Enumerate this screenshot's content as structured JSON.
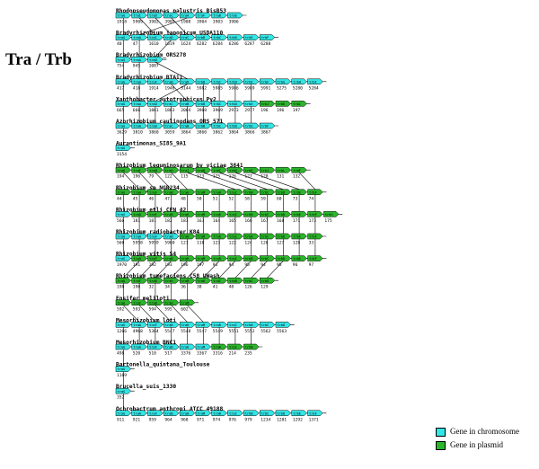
{
  "title": "Tra / Trb",
  "colors": {
    "chromosome": "#33e6e6",
    "plasmid": "#2bb52b",
    "line": "#000000"
  },
  "legend": [
    {
      "key": "chromosome",
      "label": "Gene in chromosome"
    },
    {
      "key": "plasmid",
      "label": "Gene in plasmid"
    }
  ],
  "organisms": [
    {
      "name": "Rhodopseudomonas_palustris_BisB53",
      "genes": [
        {
          "label": "traG",
          "num": "1918",
          "loc": "c"
        },
        {
          "label": "traI",
          "num": "5909",
          "loc": "c"
        },
        {
          "label": "traD",
          "num": "3902",
          "loc": "c"
        },
        {
          "label": "traC",
          "num": "3905",
          "loc": "c"
        },
        {
          "label": "traA",
          "num": "1908",
          "loc": "c"
        },
        {
          "label": "traF",
          "num": "3904",
          "loc": "c"
        },
        {
          "label": "traB",
          "num": "3903",
          "loc": "c"
        },
        {
          "label": "traE",
          "num": "3906",
          "loc": "c"
        }
      ]
    },
    {
      "name": "Bradyrhizobium_japonicum_USDA110",
      "genes": [
        {
          "label": "traG",
          "num": "40",
          "loc": "c"
        },
        {
          "label": "traA",
          "num": "47",
          "loc": "c"
        },
        {
          "label": "traI",
          "num": "1610",
          "loc": "c"
        },
        {
          "label": "traD",
          "num": "1619",
          "loc": "c"
        },
        {
          "label": "traC",
          "num": "1624",
          "loc": "c"
        },
        {
          "label": "trbB",
          "num": "6282",
          "loc": "c"
        },
        {
          "label": "trbC",
          "num": "6284",
          "loc": "c"
        },
        {
          "label": "trbD",
          "num": "6286",
          "loc": "c"
        },
        {
          "label": "trbE",
          "num": "6287",
          "loc": "c"
        },
        {
          "label": "trbF",
          "num": "6288",
          "loc": "c"
        }
      ]
    },
    {
      "name": "Bradyrhizobium_ORS278",
      "genes": [
        {
          "label": "traG",
          "num": "754",
          "loc": "c"
        },
        {
          "label": "traA",
          "num": "945",
          "loc": "c"
        },
        {
          "label": "traD",
          "num": "1087",
          "loc": "c"
        }
      ]
    },
    {
      "name": "Bradyrhizobium_BTAi1",
      "genes": [
        {
          "label": "traG",
          "num": "417",
          "loc": "c"
        },
        {
          "label": "traA",
          "num": "418",
          "loc": "c"
        },
        {
          "label": "traF",
          "num": "1914",
          "loc": "c"
        },
        {
          "label": "traB",
          "num": "1946",
          "loc": "c"
        },
        {
          "label": "traD",
          "num": "3144",
          "loc": "c"
        },
        {
          "label": "trbB",
          "num": "5982",
          "loc": "c"
        },
        {
          "label": "trbC",
          "num": "5985",
          "loc": "c"
        },
        {
          "label": "trbD",
          "num": "5986",
          "loc": "c"
        },
        {
          "label": "trbE",
          "num": "5989",
          "loc": "c"
        },
        {
          "label": "trbF",
          "num": "5991",
          "loc": "c"
        },
        {
          "label": "trbG",
          "num": "5275",
          "loc": "c"
        },
        {
          "label": "trbH",
          "num": "5280",
          "loc": "c"
        },
        {
          "label": "trbI",
          "num": "5284",
          "loc": "c"
        }
      ]
    },
    {
      "name": "Xanthobacter_autotrophicus_Py2",
      "genes": [
        {
          "label": "traG",
          "num": "665",
          "loc": "c"
        },
        {
          "label": "traA",
          "num": "666",
          "loc": "c"
        },
        {
          "label": "traD",
          "num": "1861",
          "loc": "c"
        },
        {
          "label": "traC",
          "num": "1863",
          "loc": "c"
        },
        {
          "label": "traB",
          "num": "2064",
          "loc": "c"
        },
        {
          "label": "trbB",
          "num": "3968",
          "loc": "c"
        },
        {
          "label": "trbC",
          "num": "3969",
          "loc": "c"
        },
        {
          "label": "trbD",
          "num": "2973",
          "loc": "c"
        },
        {
          "label": "trbE",
          "num": "2977",
          "loc": "c"
        },
        {
          "label": "trbJ",
          "num": "196",
          "loc": "p"
        },
        {
          "label": "trbK",
          "num": "196",
          "loc": "p"
        },
        {
          "label": "trbL",
          "num": "197",
          "loc": "p"
        }
      ]
    },
    {
      "name": "Azorhizobium_caulinodans_ORS_571",
      "genes": [
        {
          "label": "traG",
          "num": "3629",
          "loc": "c"
        },
        {
          "label": "traA",
          "num": "3810",
          "loc": "c"
        },
        {
          "label": "traD",
          "num": "3860",
          "loc": "c"
        },
        {
          "label": "traC",
          "num": "3059",
          "loc": "c"
        },
        {
          "label": "traB",
          "num": "3864",
          "loc": "c"
        },
        {
          "label": "trbB",
          "num": "3860",
          "loc": "c"
        },
        {
          "label": "trbC",
          "num": "3862",
          "loc": "c"
        },
        {
          "label": "trbD",
          "num": "3864",
          "loc": "c"
        },
        {
          "label": "trbE",
          "num": "3866",
          "loc": "c"
        },
        {
          "label": "trbF",
          "num": "3867",
          "loc": "c"
        }
      ]
    },
    {
      "name": "Aurantimonas_SI85_9A1",
      "genes": [
        {
          "label": "traG",
          "num": "3154",
          "loc": "c"
        }
      ]
    },
    {
      "name": "Rhizobium_leguminosarum_bv_viciae_3841",
      "genes": [
        {
          "label": "traA",
          "num": "194",
          "loc": "p"
        },
        {
          "label": "traF",
          "num": "196",
          "loc": "p"
        },
        {
          "label": "traB",
          "num": "79",
          "loc": "p"
        },
        {
          "label": "traH",
          "num": "122",
          "loc": "p"
        },
        {
          "label": "traI",
          "num": "115",
          "loc": "p"
        },
        {
          "label": "trbB",
          "num": "123",
          "loc": "p"
        },
        {
          "label": "trbC",
          "num": "125",
          "loc": "p"
        },
        {
          "label": "trbD",
          "num": "126",
          "loc": "p"
        },
        {
          "label": "trbE",
          "num": "127",
          "loc": "p"
        },
        {
          "label": "trbJ",
          "num": "128",
          "loc": "p"
        },
        {
          "label": "trbL",
          "num": "131",
          "loc": "p"
        },
        {
          "label": "trbF",
          "num": "132",
          "loc": "p"
        }
      ]
    },
    {
      "name": "Rhizobium_sp_NGR234",
      "genes": [
        {
          "label": "traG",
          "num": "44",
          "loc": "p"
        },
        {
          "label": "traA",
          "num": "45",
          "loc": "p"
        },
        {
          "label": "traF",
          "num": "46",
          "loc": "p"
        },
        {
          "label": "traB",
          "num": "47",
          "loc": "p"
        },
        {
          "label": "traH",
          "num": "48",
          "loc": "p"
        },
        {
          "label": "traM",
          "num": "50",
          "loc": "p"
        },
        {
          "label": "traR",
          "num": "51",
          "loc": "p"
        },
        {
          "label": "traI",
          "num": "52",
          "loc": "p"
        },
        {
          "label": "trbB",
          "num": "58",
          "loc": "p"
        },
        {
          "label": "trbC",
          "num": "59",
          "loc": "p"
        },
        {
          "label": "trbD",
          "num": "60",
          "loc": "p"
        },
        {
          "label": "trbE",
          "num": "73",
          "loc": "p"
        },
        {
          "label": "trbF",
          "num": "74",
          "loc": "p"
        }
      ]
    },
    {
      "name": "Rhizobium_etli_CFN_42",
      "genes": [
        {
          "label": "traG",
          "num": "566",
          "loc": "c"
        },
        {
          "label": "traA",
          "num": "181",
          "loc": "p"
        },
        {
          "label": "traF",
          "num": "181",
          "loc": "p"
        },
        {
          "label": "traB",
          "num": "182",
          "loc": "p"
        },
        {
          "label": "traH",
          "num": "183",
          "loc": "p"
        },
        {
          "label": "traM",
          "num": "163",
          "loc": "p"
        },
        {
          "label": "traR",
          "num": "164",
          "loc": "p"
        },
        {
          "label": "traI",
          "num": "165",
          "loc": "p"
        },
        {
          "label": "trbB",
          "num": "166",
          "loc": "p"
        },
        {
          "label": "trbC",
          "num": "167",
          "loc": "p"
        },
        {
          "label": "trbD",
          "num": "168",
          "loc": "p"
        },
        {
          "label": "trbE",
          "num": "171",
          "loc": "p"
        },
        {
          "label": "trbF",
          "num": "173",
          "loc": "p"
        },
        {
          "label": "trbG",
          "num": "175",
          "loc": "p"
        }
      ]
    },
    {
      "name": "Rhizobium_radiobacter_K84",
      "genes": [
        {
          "label": "traG",
          "num": "560",
          "loc": "c"
        },
        {
          "label": "traA",
          "num": "5958",
          "loc": "c"
        },
        {
          "label": "traF",
          "num": "5959",
          "loc": "c"
        },
        {
          "label": "traB",
          "num": "5960",
          "loc": "c"
        },
        {
          "label": "traH",
          "num": "121",
          "loc": "p"
        },
        {
          "label": "traM",
          "num": "118",
          "loc": "p"
        },
        {
          "label": "traR",
          "num": "123",
          "loc": "p"
        },
        {
          "label": "traI",
          "num": "122",
          "loc": "p"
        },
        {
          "label": "trbB",
          "num": "124",
          "loc": "p"
        },
        {
          "label": "trbC",
          "num": "126",
          "loc": "p"
        },
        {
          "label": "trbD",
          "num": "127",
          "loc": "p"
        },
        {
          "label": "trbE",
          "num": "128",
          "loc": "p"
        },
        {
          "label": "trbF",
          "num": "33",
          "loc": "p"
        }
      ]
    },
    {
      "name": "Rhizobium_vitis_S4",
      "genes": [
        {
          "label": "traG",
          "num": "1970",
          "loc": "c"
        },
        {
          "label": "traA",
          "num": "191",
          "loc": "p"
        },
        {
          "label": "traF",
          "num": "192",
          "loc": "p"
        },
        {
          "label": "traB",
          "num": "193",
          "loc": "p"
        },
        {
          "label": "traH",
          "num": "196",
          "loc": "p"
        },
        {
          "label": "traM",
          "num": "197",
          "loc": "p"
        },
        {
          "label": "traR",
          "num": "91",
          "loc": "p"
        },
        {
          "label": "traI",
          "num": "94",
          "loc": "p"
        },
        {
          "label": "trbB",
          "num": "95",
          "loc": "p"
        },
        {
          "label": "trbC",
          "num": "94",
          "loc": "p"
        },
        {
          "label": "trbD",
          "num": "95",
          "loc": "p"
        },
        {
          "label": "trbE",
          "num": "96",
          "loc": "p"
        },
        {
          "label": "trbF",
          "num": "97",
          "loc": "p"
        }
      ]
    },
    {
      "name": "Rhizobium_tumefaciens_C58_UWash",
      "genes": [
        {
          "label": "traA",
          "num": "198",
          "loc": "p"
        },
        {
          "label": "traF",
          "num": "190",
          "loc": "p"
        },
        {
          "label": "traB",
          "num": "32",
          "loc": "p"
        },
        {
          "label": "traH",
          "num": "34",
          "loc": "p"
        },
        {
          "label": "traM",
          "num": "36",
          "loc": "p"
        },
        {
          "label": "traR",
          "num": "38",
          "loc": "p"
        },
        {
          "label": "traI",
          "num": "41",
          "loc": "p"
        },
        {
          "label": "trbB",
          "num": "48",
          "loc": "p"
        },
        {
          "label": "trbC",
          "num": "126",
          "loc": "p"
        },
        {
          "label": "trbD",
          "num": "129",
          "loc": "p"
        }
      ]
    },
    {
      "name": "Ensifer_meliloti",
      "genes": [
        {
          "label": "traA",
          "num": "592",
          "loc": "p"
        },
        {
          "label": "traF",
          "num": "593",
          "loc": "p"
        },
        {
          "label": "traB",
          "num": "594",
          "loc": "p"
        },
        {
          "label": "traH",
          "num": "595",
          "loc": "p"
        },
        {
          "label": "traM",
          "num": "602",
          "loc": "p"
        }
      ]
    },
    {
      "name": "Mesorhizobium_loti",
      "genes": [
        {
          "label": "traG",
          "num": "1266",
          "loc": "c"
        },
        {
          "label": "traA",
          "num": "4968",
          "loc": "c"
        },
        {
          "label": "traF",
          "num": "5364",
          "loc": "c"
        },
        {
          "label": "traB",
          "num": "5547",
          "loc": "c"
        },
        {
          "label": "traH",
          "num": "5548",
          "loc": "c"
        },
        {
          "label": "traM",
          "num": "5547",
          "loc": "c"
        },
        {
          "label": "traR",
          "num": "5549",
          "loc": "c"
        },
        {
          "label": "traI",
          "num": "5551",
          "loc": "c"
        },
        {
          "label": "trbB",
          "num": "5552",
          "loc": "c"
        },
        {
          "label": "trbC",
          "num": "5562",
          "loc": "c"
        },
        {
          "label": "trbD",
          "num": "5563",
          "loc": "c"
        }
      ]
    },
    {
      "name": "Mesorhizobium_BNC1",
      "genes": [
        {
          "label": "traG",
          "num": "498",
          "loc": "c"
        },
        {
          "label": "traA",
          "num": "520",
          "loc": "c"
        },
        {
          "label": "traF",
          "num": "510",
          "loc": "c"
        },
        {
          "label": "traB",
          "num": "517",
          "loc": "c"
        },
        {
          "label": "traH",
          "num": "3376",
          "loc": "c"
        },
        {
          "label": "traM",
          "num": "3367",
          "loc": "c"
        },
        {
          "label": "traR",
          "num": "3316",
          "loc": "p"
        },
        {
          "label": "traI",
          "num": "214",
          "loc": "p"
        },
        {
          "label": "trbB",
          "num": "235",
          "loc": "p"
        }
      ]
    },
    {
      "name": "Bartonella_quintana_Toulouse",
      "genes": [
        {
          "label": "traG",
          "num": "1169",
          "loc": "c"
        }
      ]
    },
    {
      "name": "Brucella_suis_1330",
      "genes": [
        {
          "label": "traG",
          "num": "352",
          "loc": "c"
        }
      ]
    },
    {
      "name": "Ochrobactrum_anthropi_ATCC_49188",
      "genes": [
        {
          "label": "traG",
          "num": "911",
          "loc": "c"
        },
        {
          "label": "traA",
          "num": "921",
          "loc": "c"
        },
        {
          "label": "traF",
          "num": "959",
          "loc": "c"
        },
        {
          "label": "traB",
          "num": "964",
          "loc": "c"
        },
        {
          "label": "traH",
          "num": "968",
          "loc": "c"
        },
        {
          "label": "traM",
          "num": "971",
          "loc": "c"
        },
        {
          "label": "traR",
          "num": "974",
          "loc": "c"
        },
        {
          "label": "traI",
          "num": "976",
          "loc": "c"
        },
        {
          "label": "trbB",
          "num": "979",
          "loc": "c"
        },
        {
          "label": "trbC",
          "num": "1234",
          "loc": "c"
        },
        {
          "label": "trbD",
          "num": "1281",
          "loc": "c"
        },
        {
          "label": "trbE",
          "num": "1292",
          "loc": "c"
        },
        {
          "label": "trbF",
          "num": "1371",
          "loc": "c"
        }
      ]
    }
  ]
}
